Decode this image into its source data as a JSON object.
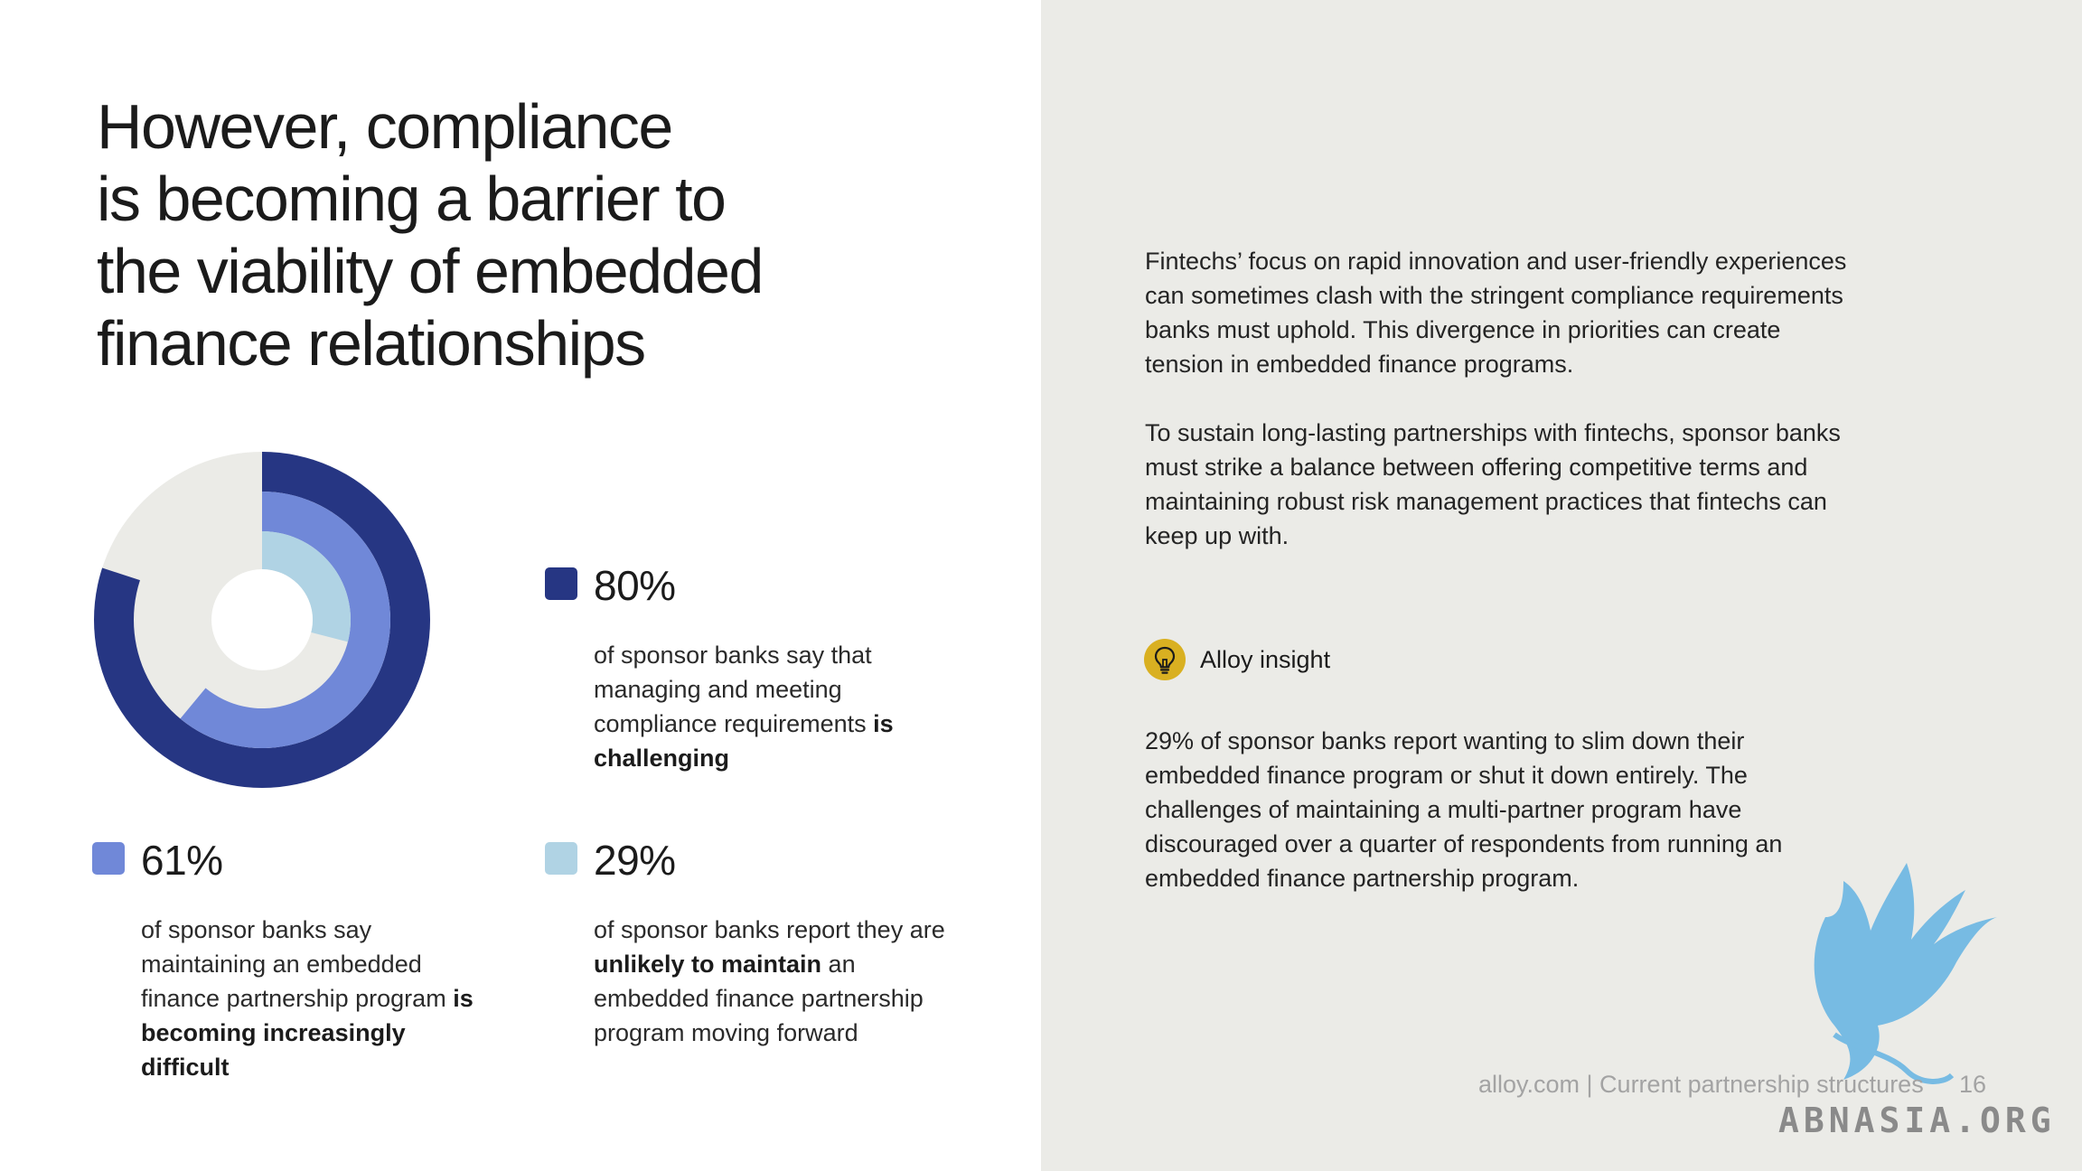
{
  "title": {
    "lines": [
      "However, compliance",
      "is becoming a barrier to",
      "the viability of embedded",
      "finance relationships"
    ]
  },
  "chart_data": {
    "type": "donut",
    "series": [
      {
        "value": 80,
        "color": "#263683"
      },
      {
        "value": 61,
        "color": "#7088d8"
      },
      {
        "value": 29,
        "color": "#b0d3e4"
      }
    ],
    "track_color": "#ebebe7",
    "range": [
      0,
      100
    ]
  },
  "stats": [
    {
      "pct": "80%",
      "color": "#263683",
      "desc_parts": [
        "of sponsor banks say that managing and meeting compliance requirements ",
        "is challenging"
      ]
    },
    {
      "pct": "61%",
      "color": "#7088d8",
      "desc_parts": [
        "of sponsor banks say maintaining an embedded finance partnership program ",
        "is becoming increasingly difficult"
      ]
    },
    {
      "pct": "29%",
      "color": "#b0d3e4",
      "desc_parts": [
        "of sponsor banks report they are ",
        "unlikely to maintain",
        " an embedded finance partnership program moving forward"
      ]
    }
  ],
  "paragraph1": {
    "lines": [
      "Fintechs’ focus on rapid innovation and user-friendly experiences",
      "can sometimes clash with the stringent compliance requirements",
      "banks must uphold. This divergence in priorities can create",
      "tension in embedded finance programs."
    ]
  },
  "paragraph2": {
    "lines": [
      "To sustain long-lasting partnerships with fintechs, sponsor banks",
      "must strike a balance between offering competitive terms and",
      "maintaining robust risk management practices that fintechs can",
      "keep up with."
    ]
  },
  "insight": {
    "icon": "lightbulb-icon",
    "icon_color": "#d9b021",
    "label": "Alloy insight",
    "lines": [
      "29% of sponsor banks report wanting to slim down their",
      "embedded finance program or shut it down entirely. The",
      "challenges of maintaining a multi-partner program have",
      "discouraged over a quarter of respondents from running an",
      "embedded finance partnership program."
    ]
  },
  "footer": {
    "text": "alloy.com | Current partnership structures",
    "page": "16"
  },
  "watermark": {
    "text": "ABNASIA.ORG"
  }
}
